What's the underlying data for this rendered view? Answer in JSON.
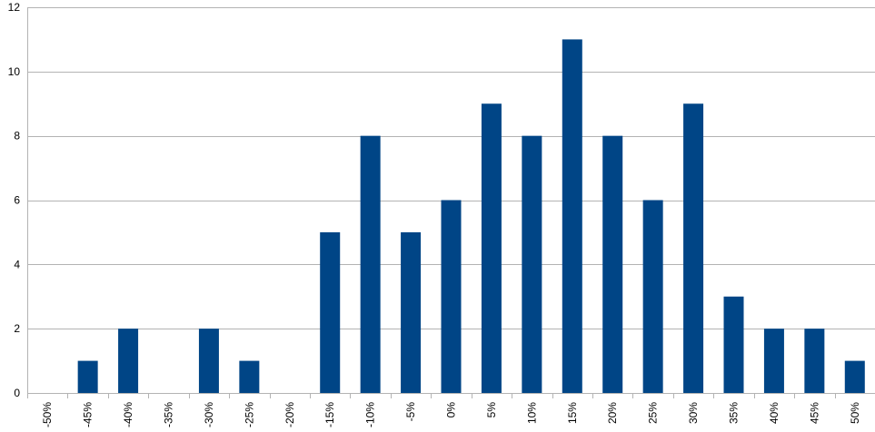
{
  "chart_data": {
    "type": "bar",
    "title": "",
    "xlabel": "",
    "ylabel": "",
    "categories": [
      "-50%",
      "-45%",
      "-40%",
      "-35%",
      "-30%",
      "-25%",
      "-20%",
      "-15%",
      "-10%",
      "-5%",
      "0%",
      "5%",
      "10%",
      "15%",
      "20%",
      "25%",
      "30%",
      "35%",
      "40%",
      "45%",
      "50%"
    ],
    "values": [
      0,
      1,
      2,
      0,
      2,
      1,
      0,
      5,
      8,
      5,
      6,
      9,
      8,
      11,
      8,
      6,
      9,
      3,
      2,
      2,
      1
    ],
    "ylim": [
      0,
      12
    ],
    "yticks": [
      0,
      2,
      4,
      6,
      8,
      10,
      12
    ],
    "grid": "horizontal",
    "legend": "none",
    "colors": {
      "bar": "#004586",
      "grid": "#b3b3b3",
      "axis": "#b3b3b3",
      "text": "#000000"
    }
  }
}
